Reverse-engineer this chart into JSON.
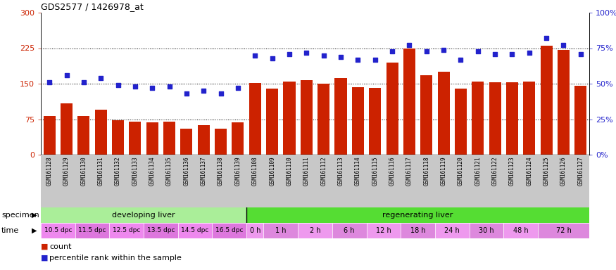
{
  "title": "GDS2577 / 1426978_at",
  "samples": [
    "GSM161128",
    "GSM161129",
    "GSM161130",
    "GSM161131",
    "GSM161132",
    "GSM161133",
    "GSM161134",
    "GSM161135",
    "GSM161136",
    "GSM161137",
    "GSM161138",
    "GSM161139",
    "GSM161108",
    "GSM161109",
    "GSM161110",
    "GSM161111",
    "GSM161112",
    "GSM161113",
    "GSM161114",
    "GSM161115",
    "GSM161116",
    "GSM161117",
    "GSM161118",
    "GSM161119",
    "GSM161120",
    "GSM161121",
    "GSM161122",
    "GSM161123",
    "GSM161124",
    "GSM161125",
    "GSM161126",
    "GSM161127"
  ],
  "counts": [
    82,
    108,
    82,
    95,
    73,
    70,
    68,
    70,
    55,
    63,
    55,
    68,
    152,
    140,
    155,
    158,
    150,
    162,
    143,
    141,
    195,
    225,
    168,
    175,
    140,
    155,
    153,
    153,
    155,
    230,
    222,
    145
  ],
  "percentiles_pct": [
    51,
    56,
    51,
    54,
    49,
    48,
    47,
    48,
    43,
    45,
    43,
    47,
    70,
    68,
    71,
    72,
    70,
    69,
    67,
    67,
    73,
    77,
    73,
    74,
    67,
    73,
    71,
    71,
    72,
    82,
    77,
    71
  ],
  "bar_color": "#cc2200",
  "dot_color": "#2222cc",
  "left_ylim": [
    0,
    300
  ],
  "right_ylim": [
    0,
    100
  ],
  "left_yticks": [
    0,
    75,
    150,
    225,
    300
  ],
  "right_yticks": [
    0,
    25,
    50,
    75,
    100
  ],
  "right_yticklabels": [
    "0%",
    "25%",
    "50%",
    "75%",
    "100%"
  ],
  "hlines": [
    75,
    150,
    225
  ],
  "specimen_developing_color": "#aaee99",
  "specimen_regenerating_color": "#55dd33",
  "time_colors_dev": [
    "#ee88ee",
    "#dd77dd",
    "#ee88ee",
    "#dd77dd",
    "#ee88ee",
    "#dd77dd"
  ],
  "time_colors_reg": [
    "#ee99ee",
    "#dd88dd",
    "#ee99ee",
    "#dd88dd",
    "#ee99ee",
    "#dd88dd",
    "#ee99ee",
    "#dd88dd",
    "#ee99ee",
    "#dd88dd"
  ],
  "time_dev_labels": [
    "10.5 dpc",
    "11.5 dpc",
    "12.5 dpc",
    "13.5 dpc",
    "14.5 dpc",
    "16.5 dpc"
  ],
  "time_dev_cols": [
    2,
    2,
    2,
    2,
    2,
    2
  ],
  "time_reg_labels": [
    "0 h",
    "1 h",
    "2 h",
    "6 h",
    "12 h",
    "18 h",
    "24 h",
    "30 h",
    "48 h",
    "72 h"
  ],
  "time_reg_cols": [
    1,
    2,
    2,
    2,
    2,
    2,
    2,
    2,
    2,
    3
  ],
  "xticklabel_bg": "#c8c8c8",
  "fig_bg": "#ffffff",
  "legend_count_text": "count",
  "legend_pct_text": "percentile rank within the sample"
}
